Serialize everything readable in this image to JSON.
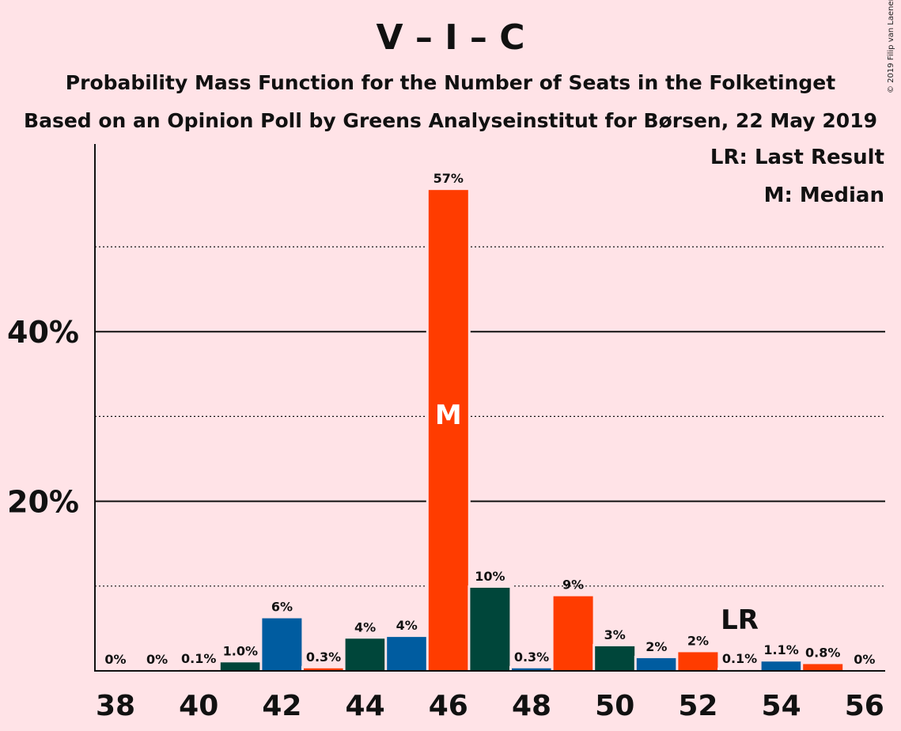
{
  "header": {
    "title": "V – I – C",
    "subtitle1": "Probability Mass Function for the Number of Seats in the Folketinget",
    "subtitle2": "Based on an Opinion Poll by Greens Analyseinstitut for Børsen, 22 May 2019",
    "copyright": "© 2019 Filip van Laenen"
  },
  "legend": {
    "last_result": "LR: Last Result",
    "median": "M: Median"
  },
  "chart_data": {
    "type": "bar",
    "x": [
      38,
      39,
      40,
      41,
      42,
      43,
      44,
      45,
      46,
      47,
      48,
      49,
      50,
      51,
      52,
      53,
      54,
      55,
      56
    ],
    "values": [
      0,
      0,
      0.1,
      1.0,
      6.2,
      0.3,
      3.8,
      4.0,
      56.7,
      9.8,
      0.3,
      8.8,
      2.9,
      1.5,
      2.2,
      0.1,
      1.1,
      0.8,
      0
    ],
    "labels": [
      "0%",
      "0%",
      "0.1%",
      "1.0%",
      "6%",
      "0.3%",
      "4%",
      "4%",
      "57%",
      "10%",
      "0.3%",
      "9%",
      "3%",
      "2%",
      "2%",
      "0.1%",
      "1.1%",
      "0.8%",
      "0%"
    ],
    "x_tick_labels": [
      "38",
      "40",
      "42",
      "44",
      "46",
      "48",
      "50",
      "52",
      "54",
      "56"
    ],
    "x_tick_values": [
      38,
      40,
      42,
      44,
      46,
      48,
      50,
      52,
      54,
      56
    ],
    "y_tick_labels": [
      "20%",
      "40%"
    ],
    "y_tick_values": [
      20,
      40
    ],
    "y_minor_gridlines": [
      10,
      30,
      50
    ],
    "ylim": [
      0,
      62
    ],
    "median_seat": 46,
    "median_marker": "M",
    "last_result_seat": 53,
    "last_result_marker": "LR",
    "color_cycle": [
      "#00463a",
      "#005ca0",
      "#ff3c00"
    ],
    "colors": {
      "v": "#00463a",
      "i": "#005ca0",
      "c": "#ff3c00",
      "background": "#ffe3e7"
    }
  }
}
